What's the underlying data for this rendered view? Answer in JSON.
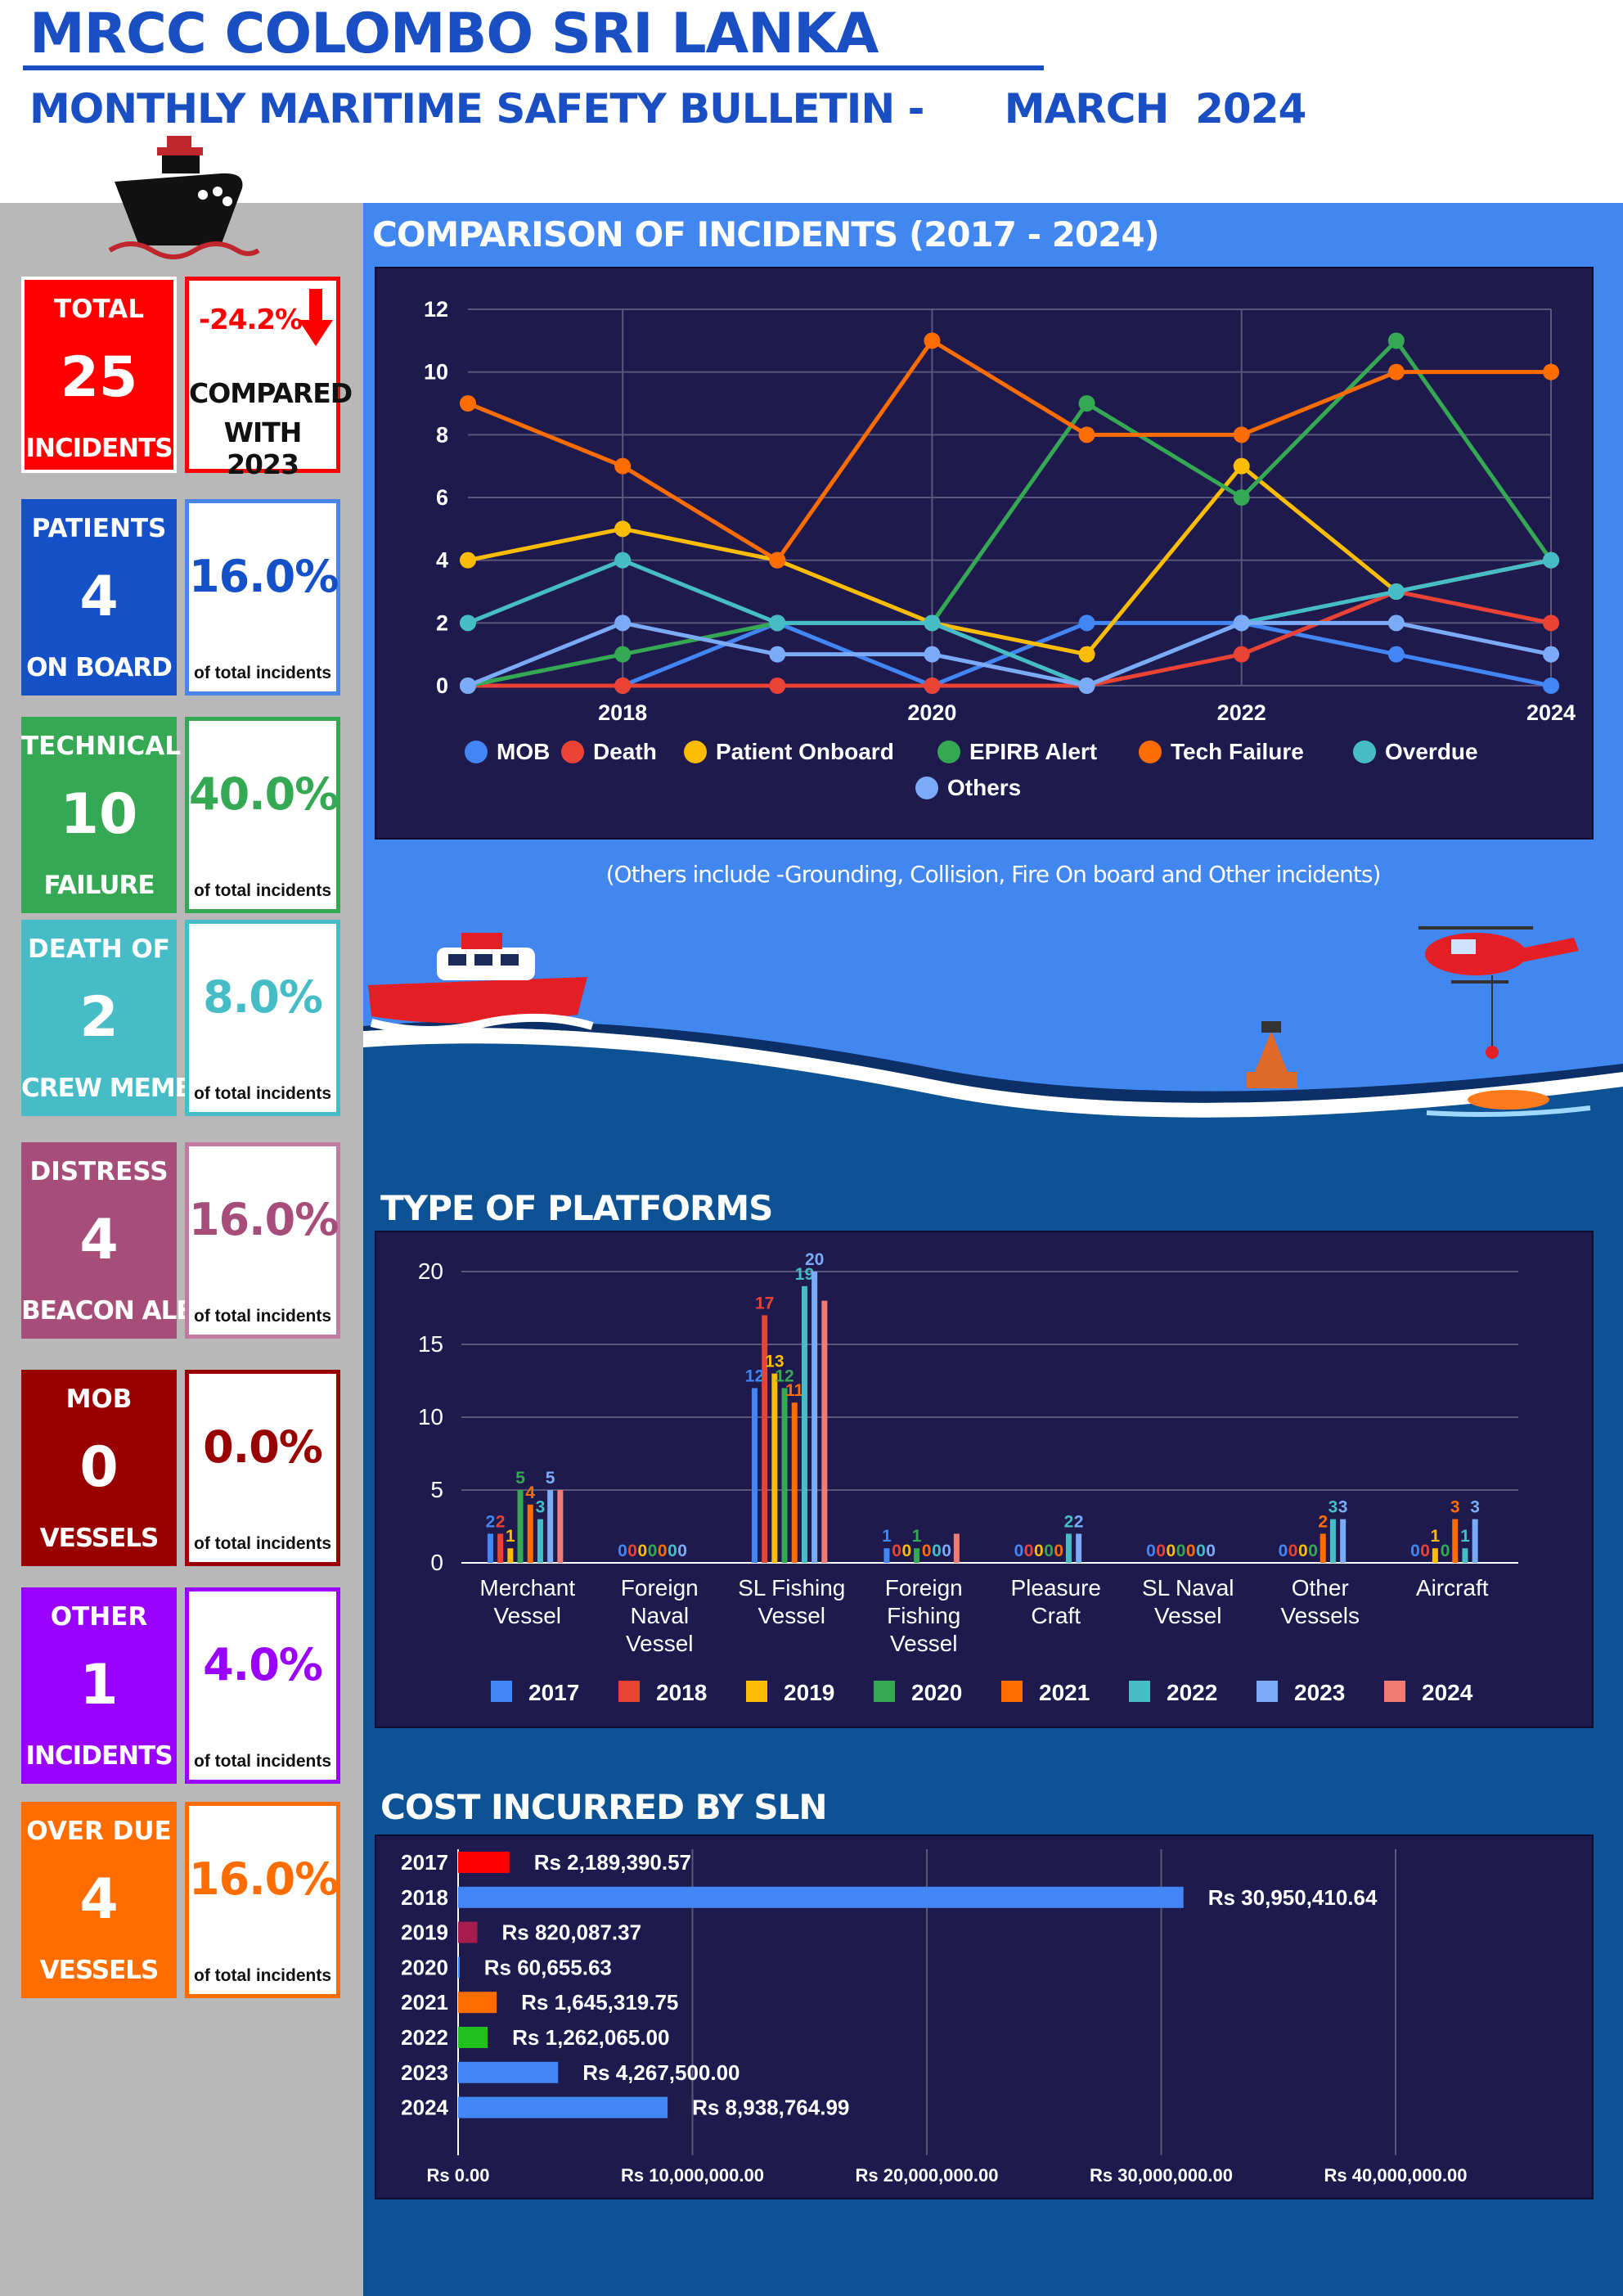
{
  "header": {
    "title": "MRCC COLOMBO SRI LANKA",
    "subtitle": "MONTHLY MARITIME SAFETY BULLETIN -      MARCH  2024"
  },
  "colors": {
    "brand_blue": "#1a4fc4",
    "main_bg": "#4286f0",
    "panel_bg": "#1f1a4d",
    "sidebar_bg": "#b8b8b8"
  },
  "summary": {
    "total": {
      "label_top": "TOTAL",
      "value": "25",
      "label_bottom": "INCIDENTS",
      "change": "-24.2%",
      "compared_l1": "COMPARED",
      "compared_l2": "WITH 2023",
      "color": "#ff0000"
    },
    "cards": [
      {
        "label_top": "PATIENTS",
        "value": "4",
        "label_bottom": "ON BOARD",
        "percent": "16.0%",
        "sub": "of total incidents",
        "color": "#1450c8",
        "border": "#4a86e8"
      },
      {
        "label_top": "TECHNICAL",
        "value": "10",
        "label_bottom": "FAILURE",
        "percent": "40.0%",
        "sub": "of total incidents",
        "color": "#34a853",
        "border": "#34a853"
      },
      {
        "label_top": "DEATH OF",
        "value": "2",
        "label_bottom": "CREW MEMBER",
        "percent": "8.0%",
        "sub": "of total incidents",
        "color": "#46bdc6",
        "border": "#46bdc6"
      },
      {
        "label_top": "DISTRESS",
        "value": "4",
        "label_bottom": "BEACON ALERT",
        "percent": "16.0%",
        "sub": "of total incidents",
        "color": "#a64d79",
        "border": "#c27ba0"
      },
      {
        "label_top": "MOB",
        "value": "0",
        "label_bottom": "VESSELS",
        "percent": "0.0%",
        "sub": "of total incidents",
        "color": "#990000",
        "border": "#990000"
      },
      {
        "label_top": "OTHER",
        "value": "1",
        "label_bottom": "INCIDENTS",
        "percent": "4.0%",
        "sub": "of total incidents",
        "color": "#9900ff",
        "border": "#9900ff"
      },
      {
        "label_top": "OVER DUE",
        "value": "4",
        "label_bottom": "VESSELS",
        "percent": "16.0%",
        "sub": "of total incidents",
        "color": "#ff6d01",
        "border": "#ff6d01"
      }
    ]
  },
  "note": "(Others include -Grounding, Collision, Fire On board and Other incidents)",
  "chart_data": [
    {
      "type": "line",
      "title": "COMPARISON OF INCIDENTS (2017 - 2024)",
      "x": [
        2017,
        2018,
        2019,
        2020,
        2021,
        2022,
        2023,
        2024
      ],
      "x_ticks": [
        "2018",
        "2020",
        "2022",
        "2024"
      ],
      "ylim": [
        0,
        12
      ],
      "y_ticks": [
        "0",
        "2",
        "4",
        "6",
        "8",
        "10",
        "12"
      ],
      "grid": true,
      "legend": "bottom",
      "series": [
        {
          "name": "MOB",
          "color": "#4285f4",
          "values": [
            0,
            0,
            2,
            0,
            2,
            2,
            1,
            0
          ]
        },
        {
          "name": "Death",
          "color": "#ea4335",
          "values": [
            0,
            0,
            0,
            0,
            0,
            1,
            3,
            2
          ]
        },
        {
          "name": "Patient Onboard",
          "color": "#fbbc04",
          "values": [
            4,
            5,
            4,
            2,
            1,
            7,
            3,
            4
          ]
        },
        {
          "name": "EPIRB Alert",
          "color": "#34a853",
          "values": [
            0,
            1,
            2,
            2,
            9,
            6,
            11,
            4
          ]
        },
        {
          "name": "Tech Failure",
          "color": "#ff6d01",
          "values": [
            9,
            7,
            4,
            11,
            8,
            8,
            10,
            10
          ]
        },
        {
          "name": "Overdue",
          "color": "#46bdc6",
          "values": [
            2,
            4,
            2,
            2,
            0,
            2,
            3,
            4
          ]
        },
        {
          "name": "Others",
          "color": "#7baaf7",
          "values": [
            0,
            2,
            1,
            1,
            0,
            2,
            2,
            1
          ]
        }
      ]
    },
    {
      "type": "bar",
      "title": "TYPE OF PLATFORMS",
      "categories": [
        "Merchant|Vessel",
        "Foreign|Naval|Vessel",
        "SL Fishing|Vessel",
        "Foreign|Fishing|Vessel",
        "Pleasure|Craft",
        "SL Naval|Vessel",
        "Other|Vessels",
        "Aircraft"
      ],
      "ylim": [
        0,
        20
      ],
      "y_ticks": [
        "0",
        "5",
        "10",
        "15",
        "20"
      ],
      "grid": true,
      "legend": "bottom",
      "series": [
        {
          "name": "2017",
          "color": "#4285f4",
          "values": [
            2,
            0,
            12,
            1,
            0,
            0,
            0,
            0
          ]
        },
        {
          "name": "2018",
          "color": "#ea4335",
          "values": [
            2,
            0,
            17,
            0,
            0,
            0,
            0,
            0
          ]
        },
        {
          "name": "2019",
          "color": "#fbbc04",
          "values": [
            1,
            0,
            13,
            0,
            0,
            0,
            0,
            1
          ]
        },
        {
          "name": "2020",
          "color": "#34a853",
          "values": [
            5,
            0,
            12,
            1,
            0,
            0,
            0,
            0
          ]
        },
        {
          "name": "2021",
          "color": "#ff6d01",
          "values": [
            4,
            0,
            11,
            0,
            0,
            0,
            2,
            3
          ]
        },
        {
          "name": "2022",
          "color": "#46bdc6",
          "values": [
            3,
            0,
            19,
            0,
            2,
            0,
            3,
            1
          ]
        },
        {
          "name": "2023",
          "color": "#7baaf7",
          "values": [
            5,
            0,
            20,
            0,
            2,
            0,
            3,
            3
          ]
        },
        {
          "name": "2024",
          "color": "#f07b72",
          "values": [
            5,
            0,
            18,
            2,
            0,
            0,
            0,
            0
          ]
        }
      ],
      "labeled_series_count": 7
    },
    {
      "type": "bar",
      "orientation": "horizontal",
      "title": "COST INCURRED BY SLN",
      "categories": [
        "2017",
        "2018",
        "2019",
        "2020",
        "2021",
        "2022",
        "2023",
        "2024"
      ],
      "values": [
        2189390.57,
        30950410.64,
        820087.37,
        60655.63,
        1645319.75,
        1262065.0,
        4267500.0,
        8938764.99
      ],
      "value_labels": [
        "Rs 2,189,390.57",
        "Rs 30,950,410.64",
        "Rs 820,087.37",
        "Rs 60,655.63",
        "Rs 1,645,319.75",
        "Rs 1,262,065.00",
        "Rs 4,267,500.00",
        "Rs 8,938,764.99"
      ],
      "colors": [
        "#ff0000",
        "#4285f4",
        "#a61c4f",
        "#4285f4",
        "#ff6d01",
        "#22c01e",
        "#4285f4",
        "#4285f4"
      ],
      "xlim": [
        0,
        40000000
      ],
      "x_ticks": [
        "Rs 0.00",
        "Rs 10,000,000.00",
        "Rs 20,000,000.00",
        "Rs 30,000,000.00",
        "Rs 40,000,000.00"
      ],
      "grid": true
    }
  ]
}
